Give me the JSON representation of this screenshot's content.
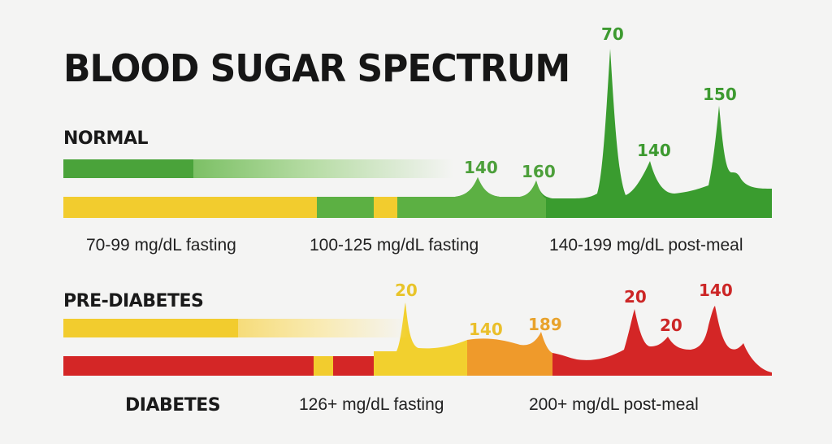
{
  "title": "BLOOD SUGAR SPECTRUM",
  "sections": {
    "normal": "NORMAL",
    "pre_diabetes": "PRE-DIABETES",
    "diabetes": "DIABETES"
  },
  "labels": {
    "normal_fasting": "70-99 mg/dL fasting",
    "pre_fasting": "100-125 mg/dL fasting",
    "post_meal_high": "140-199 mg/dL post-meal",
    "diabetes_fasting": "126+ mg/dL fasting",
    "diabetes_post_meal": "200+ mg/dL post-meal"
  },
  "peaks_top": [
    "140",
    "160",
    "70",
    "140",
    "150"
  ],
  "peaks_bottom": [
    "20",
    "140",
    "189",
    "20",
    "20",
    "140"
  ],
  "colors": {
    "green": "#3f9f34",
    "light_green": "#62b445",
    "yellow": "#f2cc2e",
    "orange": "#ee9b2c",
    "red": "#d32424",
    "text": "#161616"
  }
}
